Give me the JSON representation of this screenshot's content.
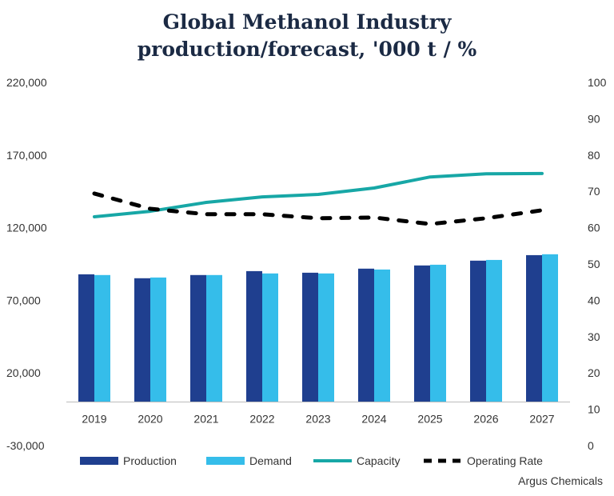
{
  "chart_data": {
    "type": "bar",
    "title_lines": [
      "Global Methanol Industry",
      "production/forecast, '000 t / %"
    ],
    "categories": [
      "2019",
      "2020",
      "2021",
      "2022",
      "2023",
      "2024",
      "2025",
      "2026",
      "2027"
    ],
    "left_axis": {
      "ylim": [
        -30000,
        220000
      ],
      "ticks": [
        "-30,000",
        "20,000",
        "70,000",
        "120,000",
        "170,000",
        "220,000"
      ],
      "tick_values": [
        -30000,
        20000,
        70000,
        120000,
        170000,
        220000
      ]
    },
    "right_axis": {
      "ylim": [
        0,
        100
      ],
      "ticks": [
        "0",
        "10",
        "20",
        "30",
        "40",
        "50",
        "60",
        "70",
        "80",
        "90",
        "100"
      ]
    },
    "series": [
      {
        "name": "Production",
        "type": "bar",
        "axis": "left",
        "color": "#1f3f8f",
        "values": [
          87900,
          85200,
          87400,
          90100,
          89000,
          91800,
          94000,
          97300,
          101100
        ]
      },
      {
        "name": "Demand",
        "type": "bar",
        "axis": "left",
        "color": "#35bdea",
        "values": [
          87400,
          85700,
          87400,
          88500,
          88500,
          91200,
          94500,
          97800,
          101700
        ]
      },
      {
        "name": "Capacity",
        "type": "line",
        "axis": "left",
        "color": "#17a7a6",
        "values": [
          127500,
          131300,
          137400,
          141200,
          142900,
          147300,
          154900,
          157100,
          157300
        ]
      },
      {
        "name": "Operating Rate",
        "type": "dashed-line",
        "axis": "right",
        "color": "#000000",
        "values": [
          69.4,
          65.2,
          63.7,
          63.7,
          62.6,
          62.8,
          61.0,
          62.6,
          64.8
        ]
      }
    ],
    "grid": false,
    "legend": "bottom",
    "source": "Argus Chemicals"
  }
}
